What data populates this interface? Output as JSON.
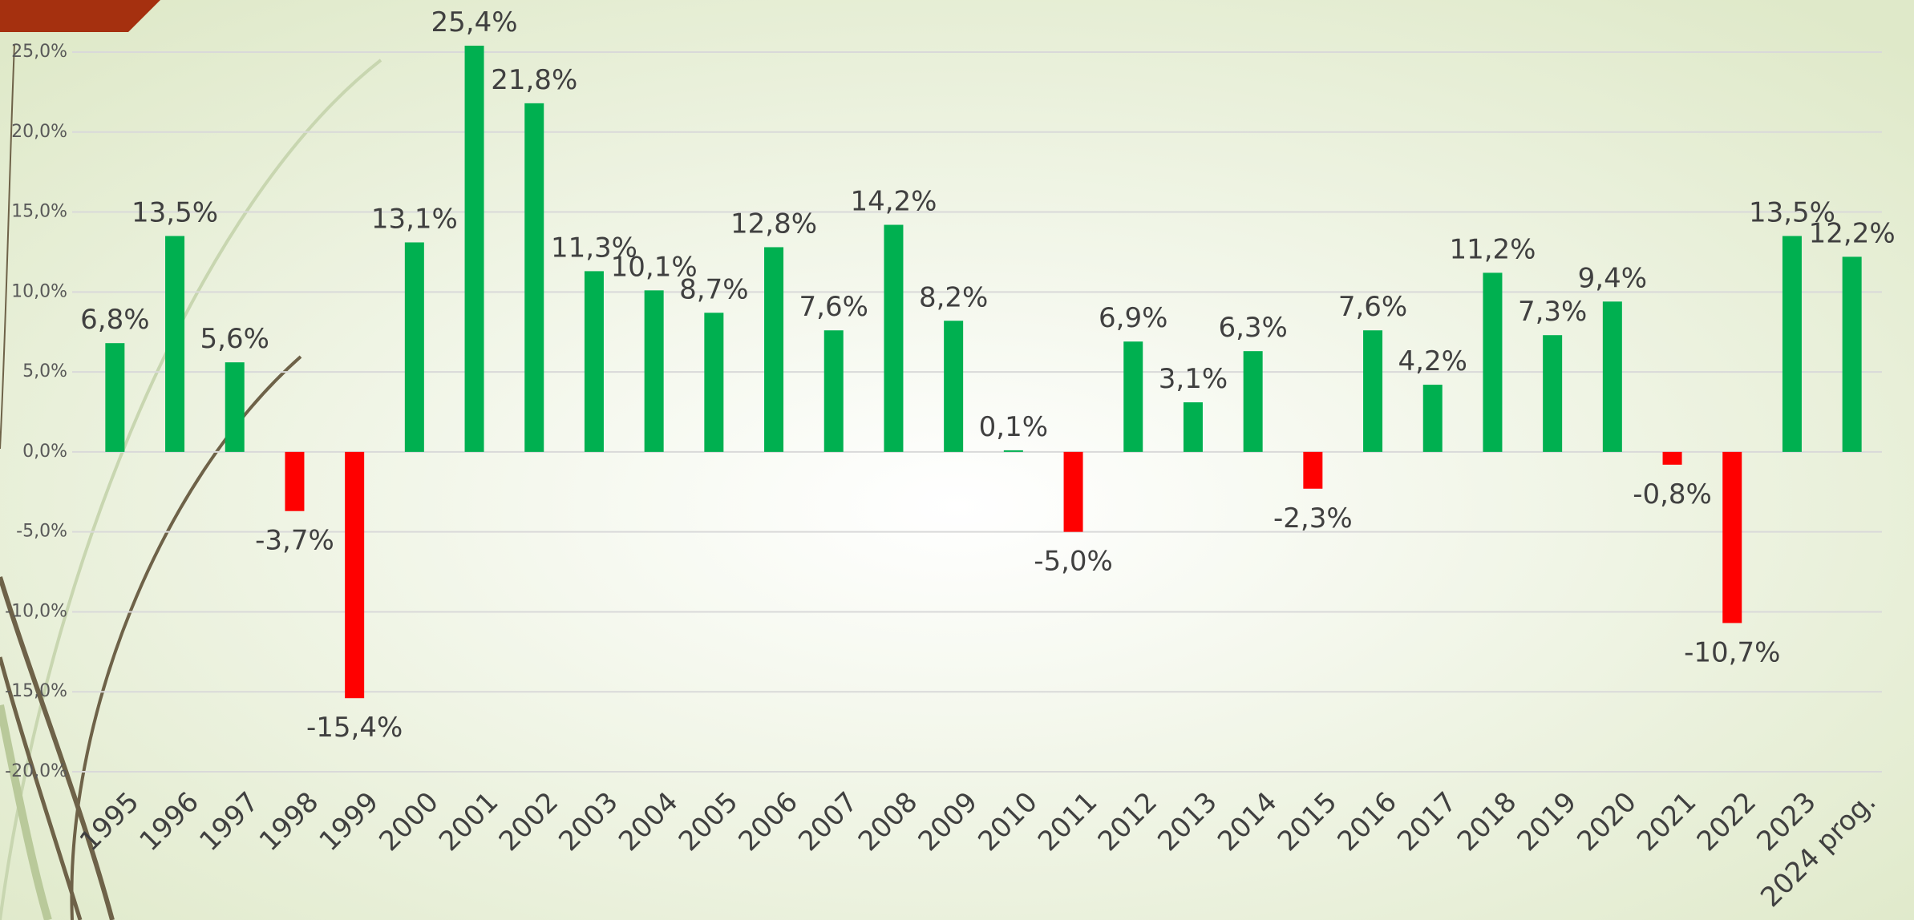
{
  "chart_data": {
    "type": "bar",
    "categories": [
      "1995",
      "1996",
      "1997",
      "1998",
      "1999",
      "2000",
      "2001",
      "2002",
      "2003",
      "2004",
      "2005",
      "2006",
      "2007",
      "2008",
      "2009",
      "2010",
      "2011",
      "2012",
      "2013",
      "2014",
      "2015",
      "2016",
      "2017",
      "2018",
      "2019",
      "2020",
      "2021",
      "2022",
      "2023",
      "2024 prog."
    ],
    "values": [
      6.8,
      13.5,
      5.6,
      -3.7,
      -15.4,
      13.1,
      25.4,
      21.8,
      11.3,
      10.1,
      8.7,
      12.8,
      7.6,
      14.2,
      8.2,
      0.1,
      -5.0,
      6.9,
      3.1,
      6.3,
      -2.3,
      7.6,
      4.2,
      11.2,
      7.3,
      9.4,
      -0.8,
      -10.7,
      13.5,
      12.2
    ],
    "value_labels": [
      "6,8%",
      "13,5%",
      "5,6%",
      "-3,7%",
      "-15,4%",
      "13,1%",
      "25,4%",
      "21,8%",
      "11,3%",
      "10,1%",
      "8,7%",
      "12,8%",
      "7,6%",
      "14,2%",
      "8,2%",
      "0,1%",
      "-5,0%",
      "6,9%",
      "3,1%",
      "6,3%",
      "-2,3%",
      "7,6%",
      "4,2%",
      "11,2%",
      "7,3%",
      "9,4%",
      "-0,8%",
      "-10,7%",
      "13,5%",
      "12,2%"
    ],
    "positive_color": "#00b050",
    "negative_color": "#ff0000",
    "ylim": [
      -20,
      25
    ],
    "yticks": [
      {
        "value": -20,
        "label": "-20,0%"
      },
      {
        "value": -15,
        "label": "-15,0%"
      },
      {
        "value": -10,
        "label": "-10,0%"
      },
      {
        "value": -5,
        "label": "-5,0%"
      },
      {
        "value": 0,
        "label": "0,0%"
      },
      {
        "value": 5,
        "label": "5,0%"
      },
      {
        "value": 10,
        "label": "10,0%"
      },
      {
        "value": 15,
        "label": "15,0%"
      },
      {
        "value": 20,
        "label": "20,0%"
      },
      {
        "value": 25,
        "label": "25,0%"
      }
    ],
    "grid": true
  }
}
